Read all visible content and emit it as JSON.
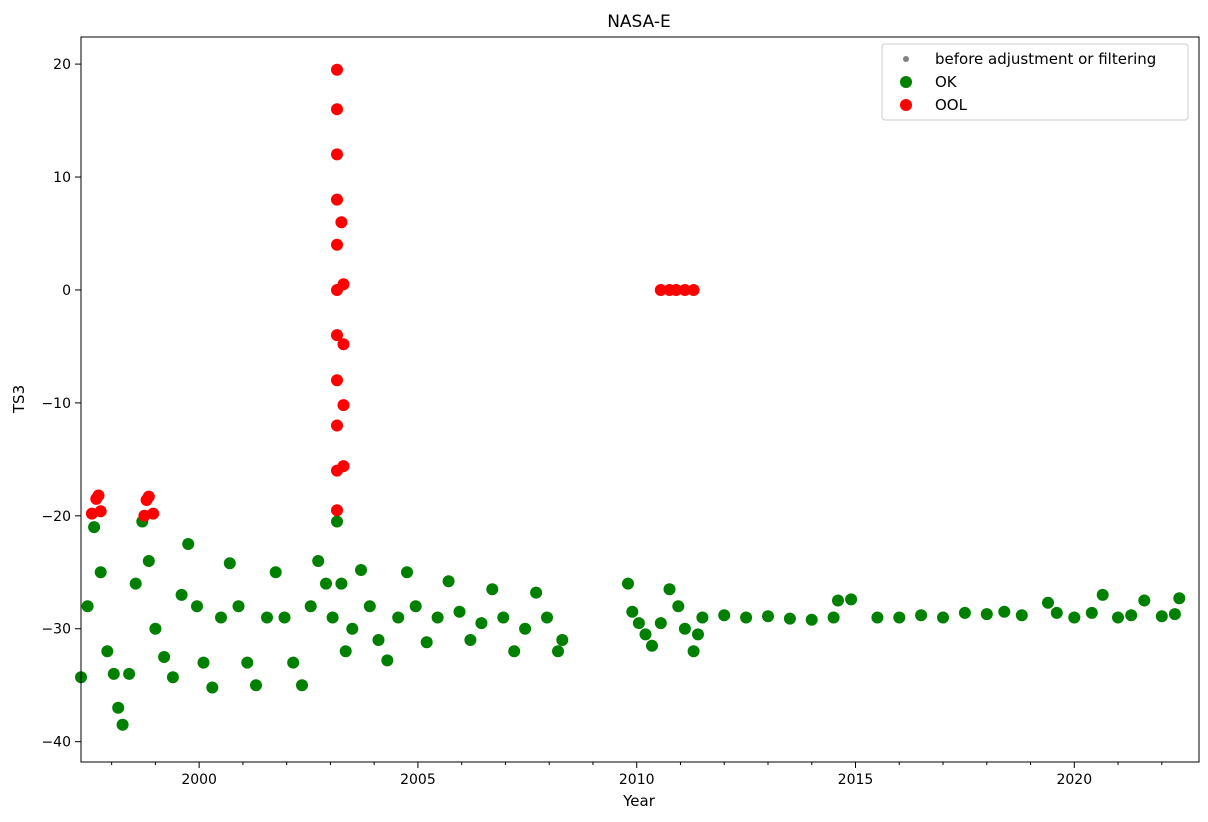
{
  "chart_data": {
    "type": "scatter",
    "title": "NASA-E",
    "xlabel": "Year",
    "ylabel": "TS3",
    "xlim": [
      1997.3,
      2022.85
    ],
    "ylim": [
      -41.8,
      22.4
    ],
    "x_ticks": [
      2000,
      2005,
      2010,
      2015,
      2020
    ],
    "y_ticks": [
      -40,
      -30,
      -20,
      -10,
      0,
      10,
      20
    ],
    "grid": false,
    "legend": {
      "placement": "top-right",
      "entries": [
        {
          "label": "before adjustment or filtering",
          "color": "#808080"
        },
        {
          "label": "OK",
          "color": "#008000"
        },
        {
          "label": "OOL",
          "color": "#ff0000"
        }
      ]
    },
    "series": [
      {
        "name": "OK",
        "color": "#008000",
        "points": [
          [
            1997.3,
            -34.3
          ],
          [
            1997.45,
            -28.0
          ],
          [
            1997.6,
            -21.0
          ],
          [
            1997.75,
            -25.0
          ],
          [
            1997.9,
            -32.0
          ],
          [
            1998.05,
            -34.0
          ],
          [
            1998.15,
            -37.0
          ],
          [
            1998.25,
            -38.5
          ],
          [
            1998.4,
            -34.0
          ],
          [
            1998.55,
            -26.0
          ],
          [
            1998.7,
            -20.5
          ],
          [
            1998.85,
            -24.0
          ],
          [
            1999.0,
            -30.0
          ],
          [
            1999.2,
            -32.5
          ],
          [
            1999.4,
            -34.3
          ],
          [
            1999.6,
            -27.0
          ],
          [
            1999.75,
            -22.5
          ],
          [
            1999.95,
            -28.0
          ],
          [
            2000.1,
            -33.0
          ],
          [
            2000.3,
            -35.2
          ],
          [
            2000.5,
            -29.0
          ],
          [
            2000.7,
            -24.2
          ],
          [
            2000.9,
            -28.0
          ],
          [
            2001.1,
            -33.0
          ],
          [
            2001.3,
            -35.0
          ],
          [
            2001.55,
            -29.0
          ],
          [
            2001.75,
            -25.0
          ],
          [
            2001.95,
            -29.0
          ],
          [
            2002.15,
            -33.0
          ],
          [
            2002.35,
            -35.0
          ],
          [
            2002.55,
            -28.0
          ],
          [
            2002.72,
            -24.0
          ],
          [
            2002.9,
            -26.0
          ],
          [
            2003.05,
            -29.0
          ],
          [
            2003.15,
            -20.5
          ],
          [
            2003.25,
            -26.0
          ],
          [
            2003.35,
            -32.0
          ],
          [
            2003.5,
            -30.0
          ],
          [
            2003.7,
            -24.8
          ],
          [
            2003.9,
            -28.0
          ],
          [
            2004.1,
            -31.0
          ],
          [
            2004.3,
            -32.8
          ],
          [
            2004.55,
            -29.0
          ],
          [
            2004.75,
            -25.0
          ],
          [
            2004.95,
            -28.0
          ],
          [
            2005.2,
            -31.2
          ],
          [
            2005.45,
            -29.0
          ],
          [
            2005.7,
            -25.8
          ],
          [
            2005.95,
            -28.5
          ],
          [
            2006.2,
            -31.0
          ],
          [
            2006.45,
            -29.5
          ],
          [
            2006.7,
            -26.5
          ],
          [
            2006.95,
            -29.0
          ],
          [
            2007.2,
            -32.0
          ],
          [
            2007.45,
            -30.0
          ],
          [
            2007.7,
            -26.8
          ],
          [
            2007.95,
            -29.0
          ],
          [
            2008.2,
            -32.0
          ],
          [
            2008.3,
            -31.0
          ],
          [
            2009.8,
            -26.0
          ],
          [
            2009.9,
            -28.5
          ],
          [
            2010.05,
            -29.5
          ],
          [
            2010.2,
            -30.5
          ],
          [
            2010.35,
            -31.5
          ],
          [
            2010.55,
            -29.5
          ],
          [
            2010.75,
            -26.5
          ],
          [
            2010.95,
            -28.0
          ],
          [
            2011.1,
            -30.0
          ],
          [
            2011.3,
            -32.0
          ],
          [
            2011.4,
            -30.5
          ],
          [
            2011.5,
            -29.0
          ],
          [
            2012.0,
            -28.8
          ],
          [
            2012.5,
            -29.0
          ],
          [
            2013.0,
            -28.9
          ],
          [
            2013.5,
            -29.1
          ],
          [
            2014.0,
            -29.2
          ],
          [
            2014.5,
            -29.0
          ],
          [
            2014.6,
            -27.5
          ],
          [
            2014.9,
            -27.4
          ],
          [
            2015.5,
            -29.0
          ],
          [
            2016.0,
            -29.0
          ],
          [
            2016.5,
            -28.8
          ],
          [
            2017.0,
            -29.0
          ],
          [
            2017.5,
            -28.6
          ],
          [
            2018.0,
            -28.7
          ],
          [
            2018.4,
            -28.5
          ],
          [
            2018.8,
            -28.8
          ],
          [
            2019.4,
            -27.7
          ],
          [
            2019.6,
            -28.6
          ],
          [
            2020.0,
            -29.0
          ],
          [
            2020.4,
            -28.6
          ],
          [
            2020.65,
            -27.0
          ],
          [
            2021.0,
            -29.0
          ],
          [
            2021.3,
            -28.8
          ],
          [
            2021.6,
            -27.5
          ],
          [
            2022.0,
            -28.9
          ],
          [
            2022.3,
            -28.7
          ],
          [
            2022.4,
            -27.3
          ]
        ]
      },
      {
        "name": "OOL",
        "color": "#ff0000",
        "points": [
          [
            1997.55,
            -19.8
          ],
          [
            1997.65,
            -18.5
          ],
          [
            1997.7,
            -18.2
          ],
          [
            1997.75,
            -19.6
          ],
          [
            1998.75,
            -20.0
          ],
          [
            1998.8,
            -18.6
          ],
          [
            1998.85,
            -18.3
          ],
          [
            1998.95,
            -19.8
          ],
          [
            2003.15,
            19.5
          ],
          [
            2003.15,
            16.0
          ],
          [
            2003.15,
            12.0
          ],
          [
            2003.15,
            8.0
          ],
          [
            2003.15,
            4.0
          ],
          [
            2003.15,
            0.0
          ],
          [
            2003.15,
            -4.0
          ],
          [
            2003.15,
            -8.0
          ],
          [
            2003.15,
            -12.0
          ],
          [
            2003.15,
            -16.0
          ],
          [
            2003.15,
            -19.5
          ],
          [
            2003.25,
            6.0
          ],
          [
            2003.3,
            0.5
          ],
          [
            2003.3,
            -4.8
          ],
          [
            2003.3,
            -10.2
          ],
          [
            2003.3,
            -15.6
          ],
          [
            2010.55,
            0.0
          ],
          [
            2010.75,
            0.0
          ],
          [
            2010.9,
            0.0
          ],
          [
            2011.1,
            0.0
          ],
          [
            2011.3,
            0.0
          ]
        ]
      }
    ]
  }
}
